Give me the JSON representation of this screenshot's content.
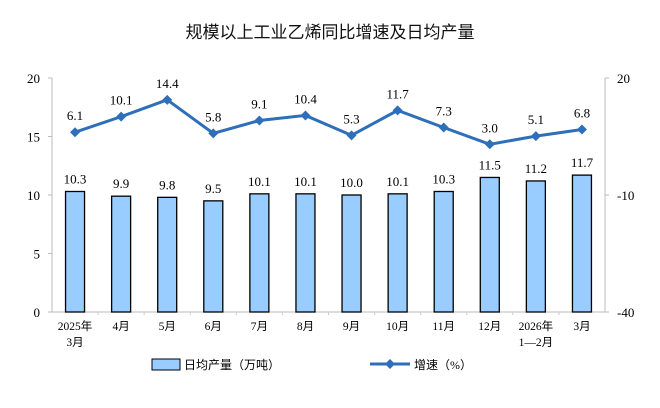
{
  "chart_data": {
    "type": "bar+line",
    "title": "规模以上工业乙烯同比增速及日均产量",
    "categories": [
      [
        "2025年",
        "3月"
      ],
      [
        "4月"
      ],
      [
        "5月"
      ],
      [
        "6月"
      ],
      [
        "7月"
      ],
      [
        "8月"
      ],
      [
        "9月"
      ],
      [
        "10月"
      ],
      [
        "11月"
      ],
      [
        "12月"
      ],
      [
        "2026年",
        "1—2月"
      ],
      [
        "3月"
      ]
    ],
    "series": [
      {
        "name": "日均产量（万吨）",
        "type": "bar",
        "axis": "left",
        "color": "#99ccff",
        "values": [
          10.3,
          9.9,
          9.8,
          9.5,
          10.1,
          10.1,
          10.0,
          10.1,
          10.3,
          11.5,
          11.2,
          11.7
        ],
        "labels": [
          "10.3",
          "9.9",
          "9.8",
          "9.5",
          "10.1",
          "10.1",
          "10.0",
          "10.1",
          "10.3",
          "11.5",
          "11.2",
          "11.7"
        ]
      },
      {
        "name": "增速（%）",
        "type": "line",
        "axis": "right",
        "color": "#2f6fba",
        "values": [
          6.1,
          10.1,
          14.4,
          5.8,
          9.1,
          10.4,
          5.3,
          11.7,
          7.3,
          3.0,
          5.1,
          6.8
        ],
        "labels": [
          "6.1",
          "10.1",
          "14.4",
          "5.8",
          "9.1",
          "10.4",
          "5.3",
          "11.7",
          "7.3",
          "3.0",
          "5.1",
          "6.8"
        ]
      }
    ],
    "left_axis": {
      "ylim": [
        0,
        20
      ],
      "ticks": [
        "0",
        "5",
        "10",
        "15",
        "20"
      ]
    },
    "right_axis": {
      "ylim": [
        -40,
        20
      ],
      "ticks": [
        "-40",
        "-10",
        "20"
      ]
    },
    "grid": false,
    "legend": "bottom"
  }
}
